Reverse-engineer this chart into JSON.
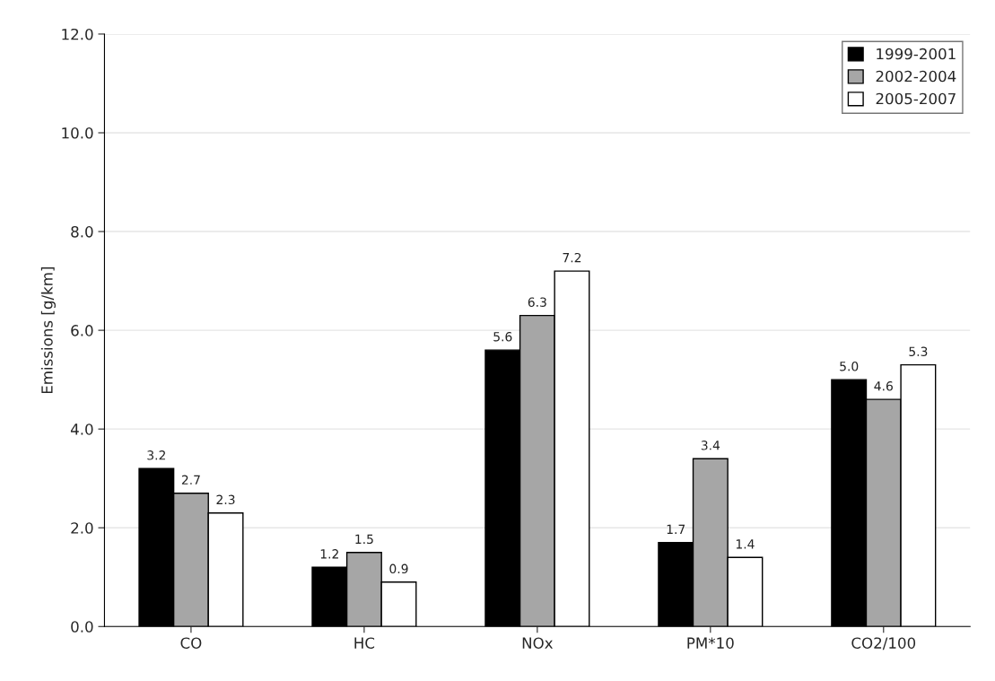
{
  "chart_data": {
    "type": "bar",
    "ylabel": "Emissions [g/km]",
    "categories": [
      "CO",
      "HC",
      "NOx",
      "PM*10",
      "CO2/100"
    ],
    "series": [
      {
        "name": "1999-2001",
        "color": "#000000",
        "values": [
          3.2,
          1.2,
          5.6,
          1.7,
          5.0
        ],
        "value_labels": [
          "3.2",
          "1.2",
          "5.6",
          "1.7",
          "5.0"
        ]
      },
      {
        "name": "2002-2004",
        "color": "#a6a6a6",
        "values": [
          2.7,
          1.5,
          6.3,
          3.4,
          4.6
        ],
        "value_labels": [
          "2.7",
          "1.5",
          "6.3",
          "3.4",
          "4.6"
        ]
      },
      {
        "name": "2005-2007",
        "color": "#ffffff",
        "values": [
          2.3,
          0.9,
          7.2,
          1.4,
          5.3
        ],
        "value_labels": [
          "2.3",
          "0.9",
          "7.2",
          "1.4",
          "5.3"
        ]
      }
    ],
    "ylim": [
      0,
      12
    ],
    "yticks": [
      {
        "value": 0,
        "label": "0.0"
      },
      {
        "value": 2,
        "label": "2.0"
      },
      {
        "value": 4,
        "label": "4.0"
      },
      {
        "value": 6,
        "label": "6.0"
      },
      {
        "value": 8,
        "label": "8.0"
      },
      {
        "value": 10,
        "label": "10.0"
      },
      {
        "value": 12,
        "label": "12.0"
      }
    ],
    "grid": "y",
    "legend": "top right"
  }
}
